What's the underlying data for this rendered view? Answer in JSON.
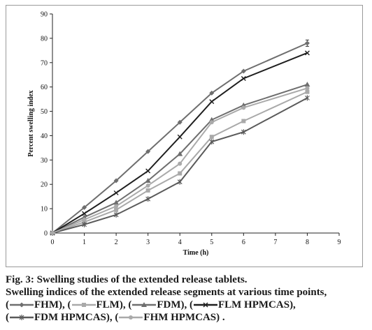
{
  "chart_data": {
    "type": "line",
    "title": "",
    "xlabel": "Time (h)",
    "ylabel": "Percent swelling index",
    "xlim": [
      0,
      9
    ],
    "ylim": [
      0,
      90
    ],
    "xticks": [
      0,
      1,
      2,
      3,
      4,
      5,
      6,
      7,
      8,
      9
    ],
    "yticks": [
      0,
      10,
      20,
      30,
      40,
      50,
      60,
      70,
      80,
      90
    ],
    "grid": false,
    "legend_placement": "caption",
    "x": [
      0,
      1,
      2,
      3,
      4,
      5,
      6,
      8
    ],
    "series": [
      {
        "name": "FHM",
        "marker": "diamond",
        "color": "#6e6e6e",
        "values": [
          0,
          10.5,
          21.5,
          33.5,
          45.5,
          57.5,
          66.5,
          78
        ]
      },
      {
        "name": "FLM",
        "marker": "square",
        "color": "#a9a9a9",
        "values": [
          0,
          4.5,
          9.5,
          17.5,
          24.5,
          39.5,
          46,
          58
        ]
      },
      {
        "name": "FDM",
        "marker": "triangle",
        "color": "#6e6e6e",
        "values": [
          0,
          6.5,
          12.5,
          21.5,
          32.5,
          46.5,
          52.5,
          61
        ]
      },
      {
        "name": "FLM HPMCAS",
        "marker": "x",
        "color": "#1e1e1e",
        "values": [
          0,
          8,
          16.5,
          25.5,
          39.5,
          54,
          63.5,
          74
        ]
      },
      {
        "name": "FDM HPMCAS",
        "marker": "star",
        "color": "#5a5a5a",
        "values": [
          0,
          3.5,
          7.5,
          14,
          21,
          37.5,
          41.5,
          55.5
        ]
      },
      {
        "name": "FHM HPMCAS",
        "marker": "circle",
        "color": "#aaaaaa",
        "values": [
          0,
          5.5,
          11,
          19.5,
          28.5,
          45.5,
          51.5,
          59.5
        ]
      }
    ]
  },
  "caption": {
    "title": "Fig. 3: Swelling studies of the extended release tablets.",
    "body": "Swelling indices of the extended release segments at various time points,",
    "legend_tail": "."
  }
}
